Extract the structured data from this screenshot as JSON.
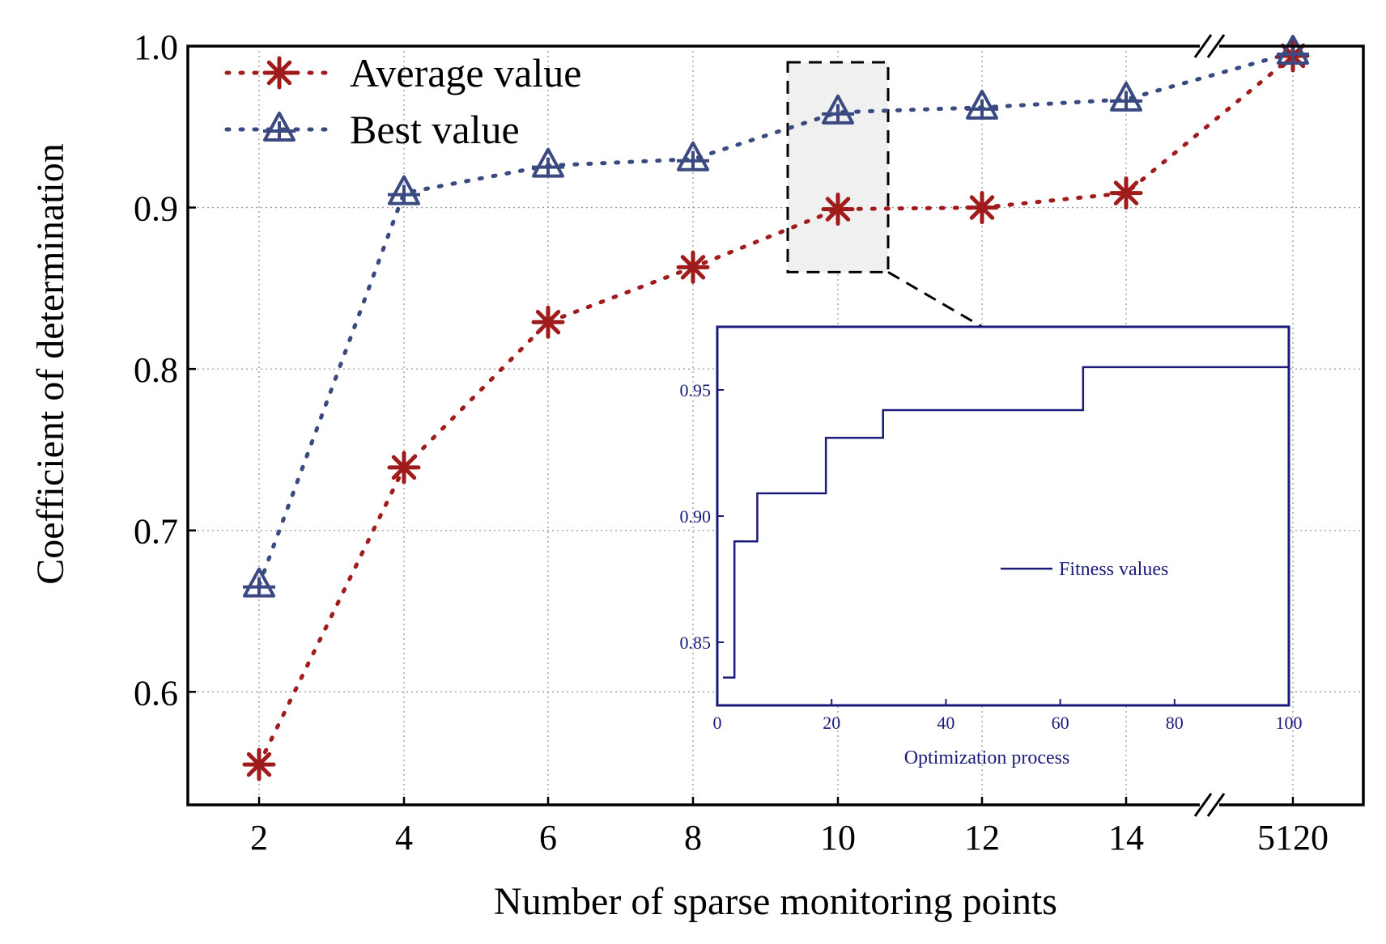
{
  "chart_data": [
    {
      "type": "line",
      "title": "",
      "xlabel": "Number of sparse monitoring points",
      "ylabel": "Coefficient of determination",
      "categories": [
        "2",
        "4",
        "6",
        "8",
        "10",
        "12",
        "14",
        "5120"
      ],
      "axis_break": "between 14 and 5120",
      "ylim": [
        0.53,
        1.0
      ],
      "yticks": [
        "0.6",
        "0.7",
        "0.8",
        "0.9",
        "1.0"
      ],
      "grid": true,
      "legend_position": "top-left",
      "series": [
        {
          "name": "Average value",
          "marker": "asterisk",
          "line_style": "dotted",
          "color": "#a01c1c",
          "values": [
            0.555,
            0.739,
            0.829,
            0.863,
            0.899,
            0.9,
            0.909,
            0.994
          ]
        },
        {
          "name": "Best value",
          "marker": "triangle",
          "line_style": "dotted",
          "color": "#3a4a80",
          "values": [
            0.666,
            0.909,
            0.926,
            0.93,
            0.959,
            0.962,
            0.967,
            0.996
          ]
        }
      ],
      "highlight": {
        "category": "10",
        "ylim": [
          0.86,
          0.99
        ],
        "fill": "#f0f0f0"
      }
    },
    {
      "type": "line",
      "title": "",
      "xlabel": "Optimization process",
      "ylabel": "",
      "xlim": [
        0,
        100
      ],
      "ylim": [
        0.825,
        0.975
      ],
      "xticks": [
        "0",
        "20",
        "40",
        "60",
        "80",
        "100"
      ],
      "yticks": [
        "0.85",
        "0.90",
        "0.95"
      ],
      "legend_position": "center-right",
      "series": [
        {
          "name": "Fitness values",
          "step": true,
          "color": "#1a1a7a",
          "x": [
            1,
            3,
            3,
            7,
            7,
            19,
            19,
            29,
            29,
            64,
            64,
            100
          ],
          "values": [
            0.836,
            0.836,
            0.89,
            0.89,
            0.909,
            0.909,
            0.931,
            0.931,
            0.942,
            0.942,
            0.959,
            0.959
          ]
        }
      ]
    }
  ]
}
